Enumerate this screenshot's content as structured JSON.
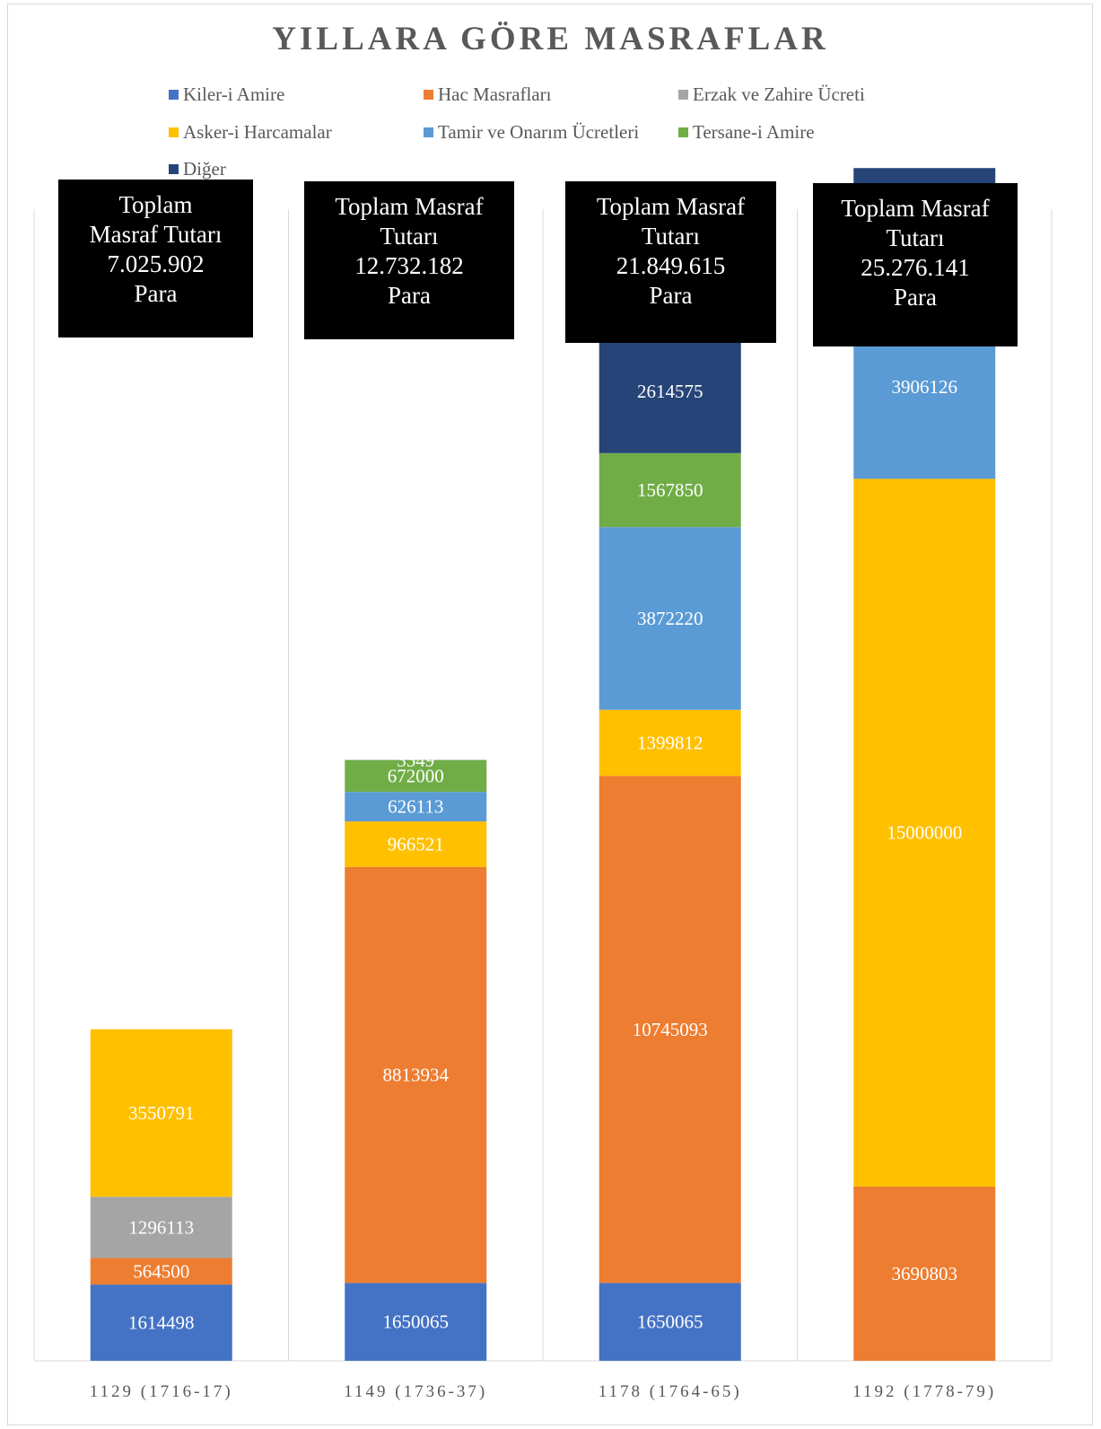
{
  "chart_data": {
    "type": "bar",
    "stacked": true,
    "title": "YILLARA GÖRE MASRAFLAR",
    "xlabel": "",
    "ylabel": "",
    "ylim": [
      0,
      30000000
    ],
    "categories": [
      "1129 (1716-17)",
      "1149 (1736-37)",
      "1178 (1764-65)",
      "1192 (1778-79)"
    ],
    "series": [
      {
        "name": "Kiler-i Amire",
        "color": "#4472C4",
        "values": [
          1614498,
          1650065,
          1650065,
          0
        ]
      },
      {
        "name": "Hac Masrafları",
        "color": "#ED7D31",
        "values": [
          564500,
          8813934,
          10745093,
          3690803
        ]
      },
      {
        "name": "Erzak ve Zahire Ücreti",
        "color": "#A5A5A5",
        "values": [
          1296113,
          0,
          0,
          0
        ]
      },
      {
        "name": "Asker-i Harcamalar",
        "color": "#FFC000",
        "values": [
          3550791,
          966521,
          1399812,
          15000000
        ]
      },
      {
        "name": "Tamir ve Onarım Ücretleri",
        "color": "#5B9BD5",
        "values": [
          0,
          626113,
          3872220,
          3906126
        ]
      },
      {
        "name": "Tersane-i Amire",
        "color": "#70AD47",
        "values": [
          0,
          672000,
          1567850,
          0
        ]
      },
      {
        "name": "Diğer",
        "color": "#264478",
        "values": [
          0,
          3549,
          2614575,
          2679212
        ]
      }
    ],
    "legend_position": "top",
    "grid": false,
    "annotations": [
      {
        "category": "1129 (1716-17)",
        "lines": [
          "Toplam",
          "Masraf Tutarı",
          "7.025.902",
          "Para"
        ]
      },
      {
        "category": "1149 (1736-37)",
        "lines": [
          "Toplam Masraf",
          "Tutarı",
          "12.732.182",
          "Para"
        ]
      },
      {
        "category": "1178 (1764-65)",
        "lines": [
          "Toplam Masraf",
          "Tutarı",
          "21.849.615",
          "Para"
        ]
      },
      {
        "category": "1192 (1778-79)",
        "lines": [
          "Toplam Masraf",
          "Tutarı",
          "25.276.141",
          "Para"
        ]
      }
    ]
  }
}
